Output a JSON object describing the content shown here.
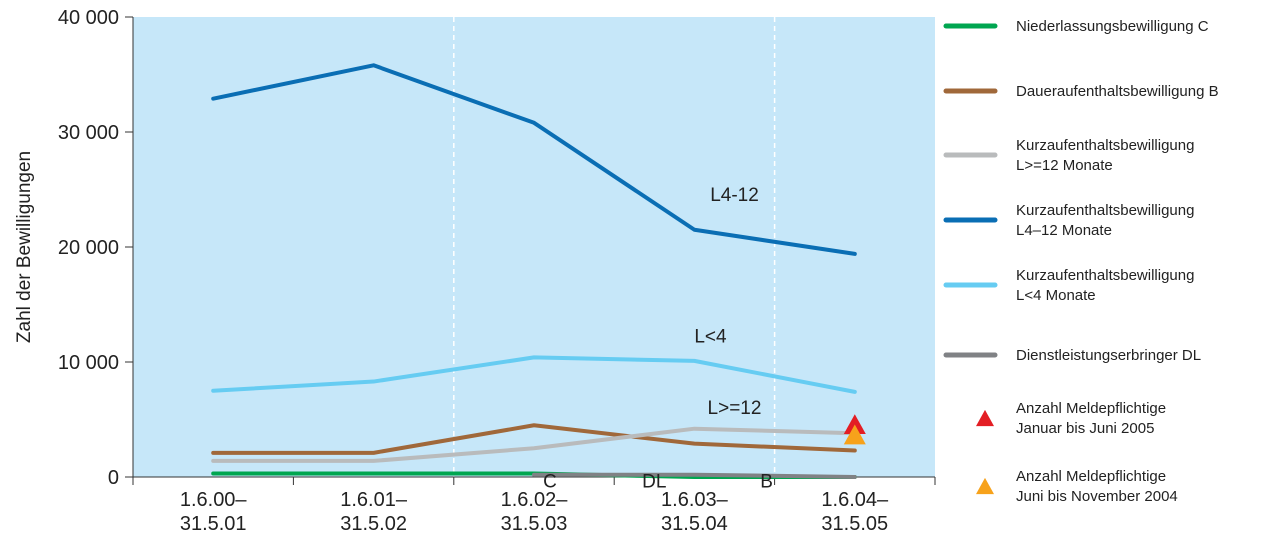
{
  "chart_data": {
    "type": "line",
    "ylabel": "Zahl der Bewilligungen",
    "xlabel": "",
    "ylim": [
      0,
      40000
    ],
    "yticks": [
      0,
      10000,
      20000,
      30000,
      40000
    ],
    "ytick_labels": [
      "0",
      "10 000",
      "20 000",
      "30 000",
      "40 000"
    ],
    "categories": [
      [
        "1.6.00–",
        "31.5.01"
      ],
      [
        "1.6.01–",
        "31.5.02"
      ],
      [
        "1.6.02–",
        "31.5.03"
      ],
      [
        "1.6.03–",
        "31.5.04"
      ],
      [
        "1.6.04–",
        "31.5.05"
      ]
    ],
    "plot_background": "#c6e7f9",
    "separators_after_categories": [
      1,
      3
    ],
    "legend_position": "right",
    "series": [
      {
        "name": [
          "Niederlassungsbewilligung C"
        ],
        "color": "#00a650",
        "values": [
          300,
          300,
          300,
          0,
          0
        ]
      },
      {
        "name": [
          "Daueraufenthaltsbewilligung B"
        ],
        "color": "#a0683a",
        "values": [
          2100,
          2100,
          4500,
          2900,
          2300
        ]
      },
      {
        "name": [
          "Kurzaufenthaltsbewilligung",
          "L>=12 Monate"
        ],
        "color": "#b9bbbc",
        "values": [
          1400,
          1400,
          2500,
          4200,
          3800
        ]
      },
      {
        "name": [
          "Kurzaufenthaltsbewilligung",
          "L4–12 Monate"
        ],
        "color": "#0a6eb4",
        "values": [
          32900,
          35800,
          30800,
          21500,
          19400
        ]
      },
      {
        "name": [
          "Kurzaufenthaltsbewilligung",
          "L<4 Monate"
        ],
        "color": "#66ccf2",
        "values": [
          7500,
          8300,
          10400,
          10100,
          7400
        ]
      },
      {
        "name": [
          "Dienstleistungserbringer DL"
        ],
        "color": "#808285",
        "values": [
          null,
          null,
          200,
          200,
          0
        ]
      }
    ],
    "markers": [
      {
        "name": [
          "Anzahl Meldepflichtige",
          "Januar bis Juni 2005"
        ],
        "color": "#e31e24",
        "category_index": 4,
        "value": 4600
      },
      {
        "name": [
          "Anzahl Meldepflichtige",
          "Juni bis November 2004"
        ],
        "color": "#f7a21b",
        "category_index": 4,
        "value": 3700
      }
    ],
    "annotations": [
      {
        "text": "L4-12",
        "category_index": 3.25,
        "value": 24000
      },
      {
        "text": "L<4",
        "category_index": 3.1,
        "value": 11700
      },
      {
        "text": "L>=12",
        "category_index": 3.25,
        "value": 5500
      },
      {
        "text": "C",
        "category_index": 2.1,
        "value": -900
      },
      {
        "text": "DL",
        "category_index": 2.75,
        "value": -900
      },
      {
        "text": "B",
        "category_index": 3.45,
        "value": -900
      }
    ]
  }
}
